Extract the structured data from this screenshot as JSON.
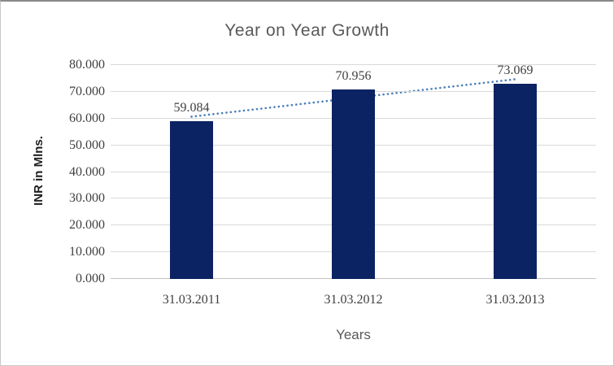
{
  "page": {
    "background": "#ffffff",
    "border_color": "#c9c9c9",
    "top_edge_color": "#8a8a8a"
  },
  "colors": {
    "title_text": "#595959",
    "tick_text": "#3f3f3f",
    "axis_title_text": "#1f1f1f",
    "x_title_text": "#595959"
  },
  "chart_data": {
    "type": "bar",
    "title": "Year on Year Growth",
    "xlabel": "Years",
    "ylabel": "INR in Mlns.",
    "categories": [
      "31.03.2011",
      "31.03.2012",
      "31.03.2013"
    ],
    "values": [
      59.084,
      70.956,
      73.069
    ],
    "value_labels": [
      "59.084",
      "70.956",
      "73.069"
    ],
    "ylim": [
      0,
      80
    ],
    "ytick_step": 10,
    "ytick_labels": [
      "0.000",
      "10.000",
      "20.000",
      "30.000",
      "40.000",
      "50.000",
      "60.000",
      "70.000",
      "80.000"
    ],
    "grid": "horizontal",
    "legend": "none",
    "bar_color": "#0b2362",
    "gridline_color": "#d9d9d9",
    "data_label_position": "outside-end",
    "trendline": {
      "type": "linear",
      "style": "dotted",
      "color": "#4a7ebb",
      "start_value": 60.7,
      "end_value": 74.7
    }
  }
}
